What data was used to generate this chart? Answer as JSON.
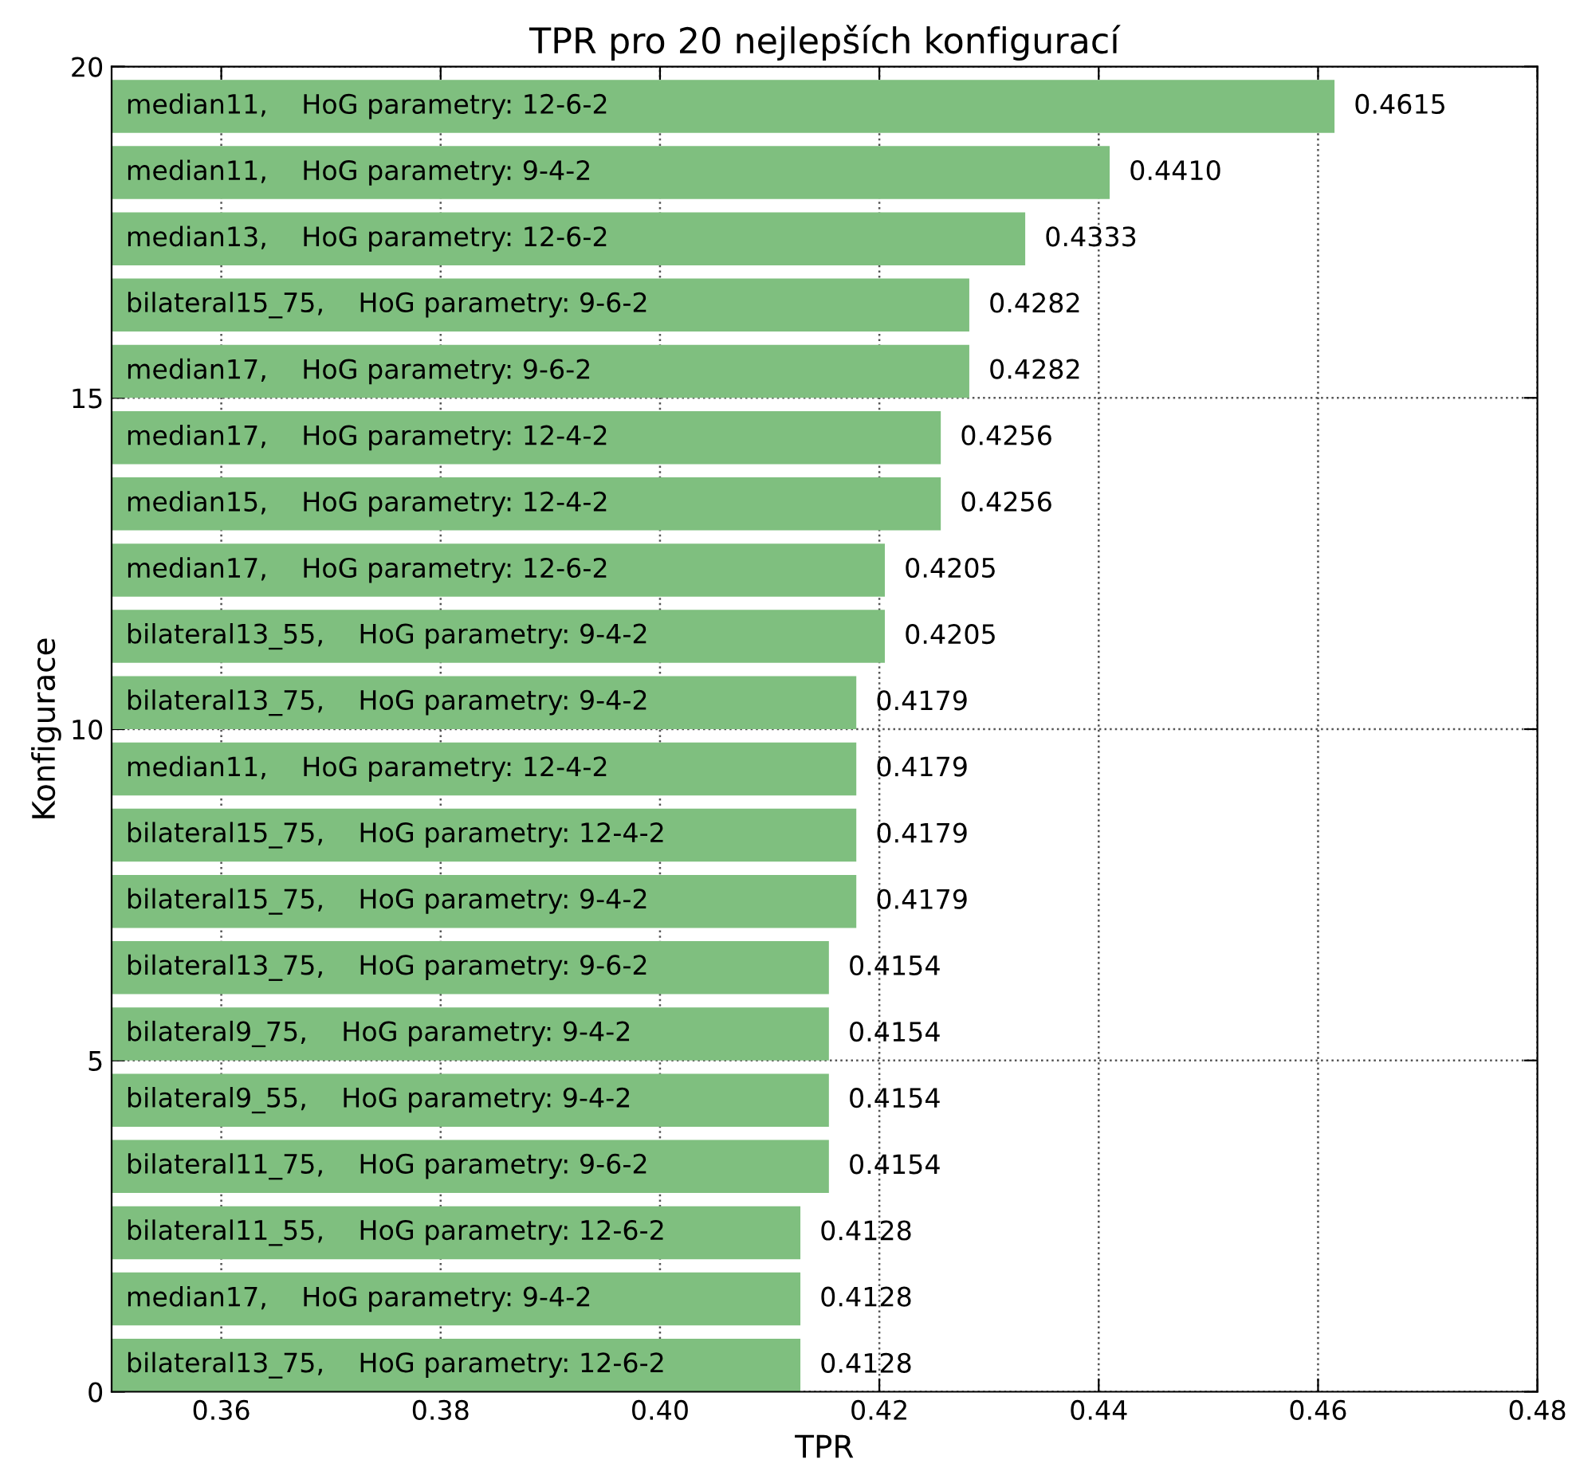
{
  "chart_data": {
    "type": "bar",
    "orientation": "horizontal",
    "title": "TPR pro 20 nejlepších konfigurací",
    "xlabel": "TPR",
    "ylabel": "Konfigurace",
    "x": [
      19.4,
      18.4,
      17.4,
      16.4,
      15.4,
      14.4,
      13.4,
      12.4,
      11.4,
      10.4,
      9.4,
      8.4,
      7.4,
      6.4,
      5.4,
      4.4,
      3.4,
      2.4,
      1.4,
      0.4
    ],
    "values": [
      0.4615,
      0.441,
      0.4333,
      0.4282,
      0.4282,
      0.4256,
      0.4256,
      0.4205,
      0.4205,
      0.4179,
      0.4179,
      0.4179,
      0.4179,
      0.4154,
      0.4154,
      0.4154,
      0.4154,
      0.4128,
      0.4128,
      0.4128
    ],
    "value_labels": [
      "0.4615",
      "0.4410",
      "0.4333",
      "0.4282",
      "0.4282",
      "0.4256",
      "0.4256",
      "0.4205",
      "0.4205",
      "0.4179",
      "0.4179",
      "0.4179",
      "0.4179",
      "0.4154",
      "0.4154",
      "0.4154",
      "0.4154",
      "0.4128",
      "0.4128",
      "0.4128"
    ],
    "annotations": [
      "median11,    HoG parametry: 12-6-2",
      "median11,    HoG parametry: 9-4-2",
      "median13,    HoG parametry: 12-6-2",
      "bilateral15_75,    HoG parametry: 9-6-2",
      "median17,    HoG parametry: 9-6-2",
      "median17,    HoG parametry: 12-4-2",
      "median15,    HoG parametry: 12-4-2",
      "median17,    HoG parametry: 12-6-2",
      "bilateral13_55,    HoG parametry: 9-4-2",
      "bilateral13_75,    HoG parametry: 9-4-2",
      "median11,    HoG parametry: 12-4-2",
      "bilateral15_75,    HoG parametry: 12-4-2",
      "bilateral15_75,    HoG parametry: 9-4-2",
      "bilateral13_75,    HoG parametry: 9-6-2",
      "bilateral9_75,    HoG parametry: 9-4-2",
      "bilateral9_55,    HoG parametry: 9-4-2",
      "bilateral11_75,    HoG parametry: 9-6-2",
      "bilateral11_55,    HoG parametry: 12-6-2",
      "median17,    HoG parametry: 9-4-2",
      "bilateral13_75,    HoG parametry: 12-6-2"
    ],
    "color": "#7fbf7f",
    "xlim": [
      0.35,
      0.48
    ],
    "xticks": [
      {
        "value": 0.36,
        "label": "0.36"
      },
      {
        "value": 0.38,
        "label": "0.38"
      },
      {
        "value": 0.4,
        "label": "0.40"
      },
      {
        "value": 0.42,
        "label": "0.42"
      },
      {
        "value": 0.44,
        "label": "0.44"
      },
      {
        "value": 0.46,
        "label": "0.46"
      },
      {
        "value": 0.48,
        "label": "0.48"
      }
    ],
    "ylim": [
      0,
      20
    ],
    "yticks": [
      0,
      5,
      10,
      15,
      20
    ],
    "grid": true,
    "legend": false
  }
}
